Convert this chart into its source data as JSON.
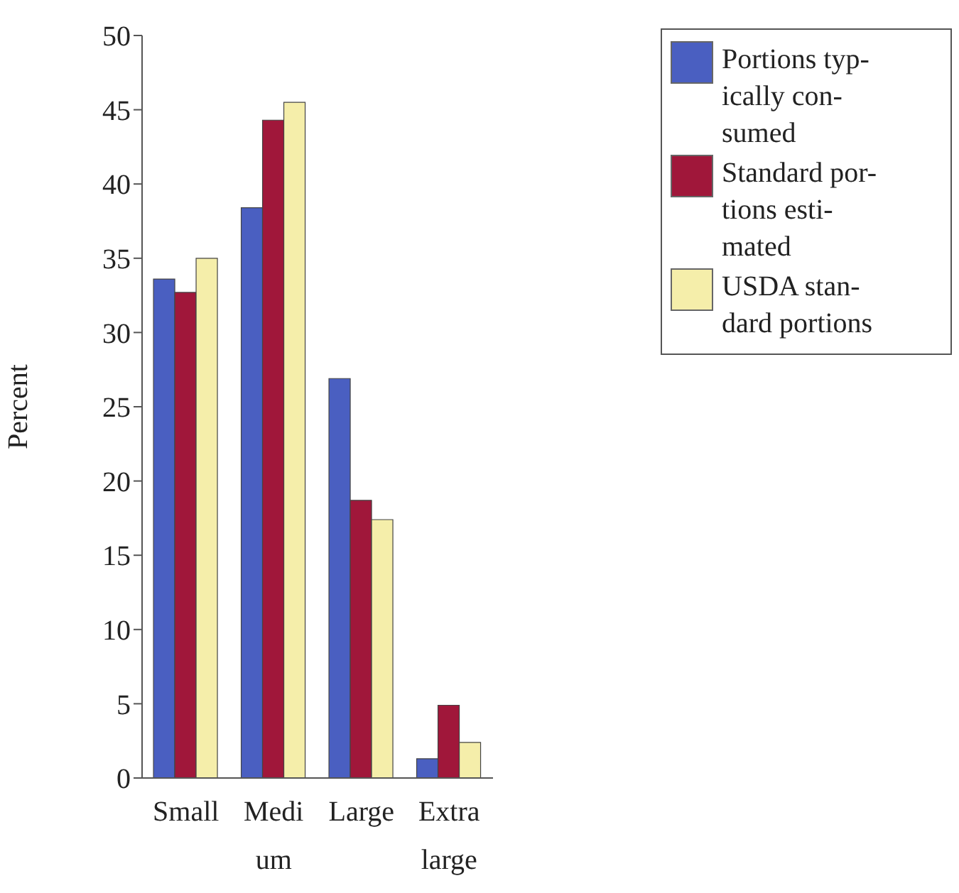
{
  "chart_data": {
    "type": "bar",
    "ylabel": "Percent",
    "categories": [
      "Small",
      "Medi\num",
      "Large",
      "Extra\nlarge"
    ],
    "series": [
      {
        "name": "Portions typ-\nically con-\nsumed",
        "color": "#4a5fc1",
        "values": [
          33.6,
          38.4,
          26.9,
          1.3
        ]
      },
      {
        "name": "Standard por-\ntions esti-\nmated",
        "color": "#a0173a",
        "values": [
          32.7,
          44.3,
          18.7,
          4.9
        ]
      },
      {
        "name": "USDA stan-\ndard portions",
        "color": "#f5eeaa",
        "values": [
          35.0,
          45.5,
          17.4,
          2.4
        ]
      }
    ],
    "ylim": [
      0,
      50
    ],
    "yticks": [
      0,
      5,
      10,
      15,
      20,
      25,
      30,
      35,
      40,
      45,
      50
    ],
    "grid": false,
    "legend": "top right"
  }
}
